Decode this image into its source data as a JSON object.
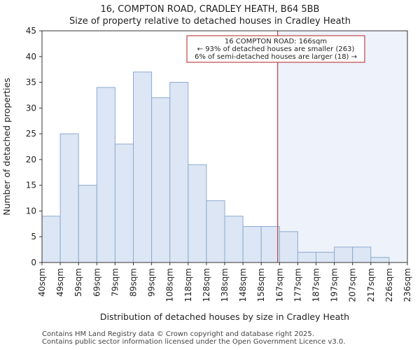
{
  "header": {
    "title": "16, COMPTON ROAD, CRADLEY HEATH, B64 5BB",
    "subtitle": "Size of property relative to detached houses in Cradley Heath"
  },
  "footer": {
    "line1": "Contains HM Land Registry data © Crown copyright and database right 2025.",
    "line2": "Contains public sector information licensed under the Open Government Licence v3.0."
  },
  "colors": {
    "bar_fill": "#dce6f4",
    "bar_stroke": "#8eaad0",
    "marker_line": "#b22222",
    "shade_fill": "#eef2fb",
    "annotation_border": "#b22222"
  },
  "chart_data": {
    "type": "bar",
    "title": "16, COMPTON ROAD, CRADLEY HEATH, B64 5BB",
    "subtitle": "Size of property relative to detached houses in Cradley Heath",
    "xlabel": "Distribution of detached houses by size in Cradley Heath",
    "ylabel": "Number of detached properties",
    "ylim": [
      0,
      45
    ],
    "yticks": [
      0,
      5,
      10,
      15,
      20,
      25,
      30,
      35,
      40,
      45
    ],
    "bin_edges": [
      "40sqm",
      "49sqm",
      "59sqm",
      "69sqm",
      "79sqm",
      "89sqm",
      "99sqm",
      "108sqm",
      "118sqm",
      "128sqm",
      "138sqm",
      "148sqm",
      "158sqm",
      "167sqm",
      "177sqm",
      "187sqm",
      "197sqm",
      "207sqm",
      "217sqm",
      "226sqm",
      "236sqm"
    ],
    "values": [
      9,
      25,
      15,
      34,
      23,
      37,
      32,
      35,
      19,
      12,
      9,
      7,
      7,
      6,
      2,
      2,
      3,
      3,
      1,
      0
    ],
    "marker": {
      "value_sqm": 166,
      "bin_position": 12.9
    },
    "annotation": {
      "line1": "16 COMPTON ROAD: 166sqm",
      "line2": "← 93% of detached houses are smaller (263)",
      "line3": "6% of semi-detached houses are larger (18) →"
    },
    "grid": false,
    "legend": "none"
  }
}
